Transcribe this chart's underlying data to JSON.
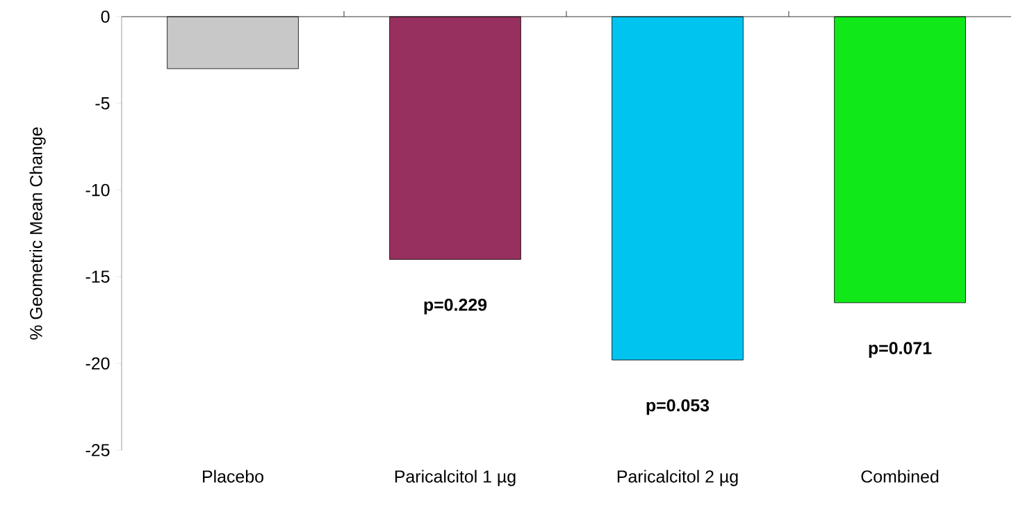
{
  "chart_data": {
    "type": "bar",
    "ylabel": "% Geometric Mean Change",
    "categories": [
      "Placebo",
      "Paricalcitol 1 µg",
      "Paricalcitol 2 µg",
      "Combined"
    ],
    "values": [
      -3,
      -14,
      -19.8,
      -16.5
    ],
    "colors": [
      "#c8c8c8",
      "#98305f",
      "#00c4f0",
      "#10e818"
    ],
    "ylim": [
      -25,
      0
    ],
    "yticks": [
      -25,
      -20,
      -15,
      -10,
      -5,
      0
    ],
    "grid": false,
    "annotations": [
      "p=0.229",
      "p=0.053",
      "p=0.071"
    ]
  }
}
